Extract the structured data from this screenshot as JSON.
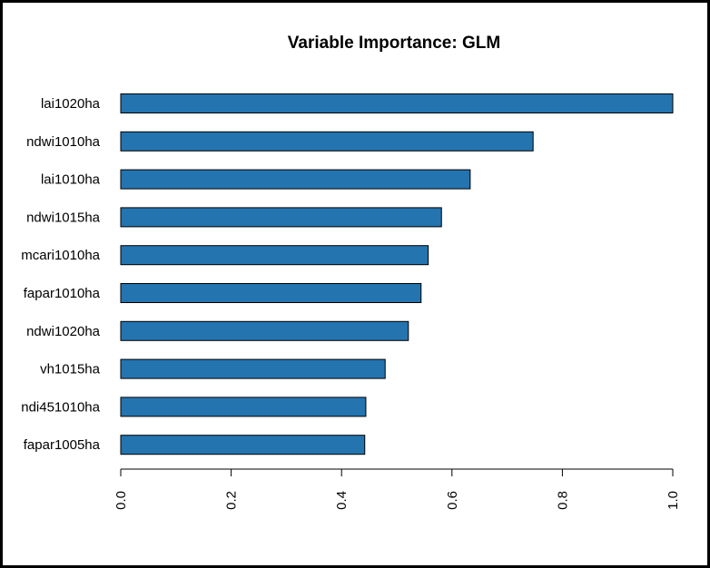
{
  "chart_data": {
    "type": "bar",
    "orientation": "horizontal",
    "title": "Variable Importance: GLM",
    "xlabel": "",
    "ylabel": "",
    "categories": [
      "lai1020ha",
      "ndwi1010ha",
      "lai1010ha",
      "ndwi1015ha",
      "mcari1010ha",
      "fapar1010ha",
      "ndwi1020ha",
      "vh1015ha",
      "ndi451010ha",
      "fapar1005ha"
    ],
    "values": [
      1.0,
      0.747,
      0.633,
      0.581,
      0.557,
      0.544,
      0.521,
      0.479,
      0.444,
      0.442
    ],
    "xlim": [
      0,
      1
    ],
    "xticks": [
      "0.0",
      "0.2",
      "0.4",
      "0.6",
      "0.8",
      "1.0"
    ],
    "xtick_values": [
      0,
      0.2,
      0.4,
      0.6,
      0.8,
      1.0
    ],
    "bar_color": "#2474b0",
    "grid": false,
    "legend": "none"
  }
}
